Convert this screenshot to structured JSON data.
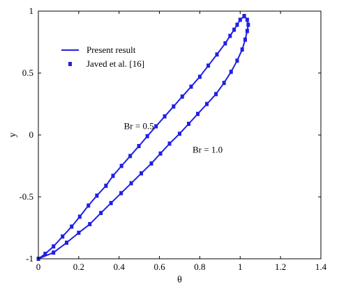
{
  "chart_data": {
    "type": "line",
    "xlabel": "θ",
    "ylabel": "y",
    "xlim": [
      0,
      1.4
    ],
    "ylim": [
      -1,
      1
    ],
    "xticks": [
      "0",
      "0.2",
      "0.4",
      "0.6",
      "0.8",
      "1",
      "1.2",
      "1.4"
    ],
    "yticks": [
      "-1",
      "-0.5",
      "0",
      "0.5",
      "1"
    ],
    "grid": false,
    "legend_position": "top-left",
    "legend": [
      {
        "label": "Present result",
        "style": "line"
      },
      {
        "label": "Javed et al. [16]",
        "style": "marker"
      }
    ],
    "color": "#1f1fe6",
    "annotations": [
      {
        "text": "Br = 0.5",
        "x": 0.5,
        "y": 0.07
      },
      {
        "text": "Br = 1.0",
        "x": 0.84,
        "y": -0.12
      }
    ],
    "series": [
      {
        "x": [
          0.0,
          0.034,
          0.075,
          0.12,
          0.165,
          0.205,
          0.248,
          0.29,
          0.335,
          0.37,
          0.412,
          0.455,
          0.498,
          0.54,
          0.583,
          0.626,
          0.67,
          0.713,
          0.757,
          0.8,
          0.842,
          0.885,
          0.926,
          0.95,
          0.97,
          0.985,
          1.0,
          1.02
        ],
        "y": [
          -1.0,
          -0.96,
          -0.9,
          -0.82,
          -0.74,
          -0.66,
          -0.57,
          -0.49,
          -0.41,
          -0.33,
          -0.25,
          -0.17,
          -0.09,
          -0.01,
          0.07,
          0.15,
          0.23,
          0.31,
          0.39,
          0.47,
          0.56,
          0.65,
          0.74,
          0.8,
          0.85,
          0.89,
          0.93,
          0.96
        ]
      },
      {
        "x": [
          0.0,
          0.075,
          0.14,
          0.2,
          0.255,
          0.31,
          0.36,
          0.41,
          0.46,
          0.51,
          0.56,
          0.605,
          0.65,
          0.7,
          0.745,
          0.79,
          0.835,
          0.88,
          0.92,
          0.955,
          0.985,
          1.01,
          1.025,
          1.035,
          1.04,
          1.035,
          1.02
        ],
        "y": [
          -1.0,
          -0.95,
          -0.87,
          -0.79,
          -0.72,
          -0.63,
          -0.55,
          -0.47,
          -0.39,
          -0.31,
          -0.23,
          -0.15,
          -0.07,
          0.01,
          0.09,
          0.17,
          0.25,
          0.33,
          0.42,
          0.51,
          0.6,
          0.69,
          0.77,
          0.84,
          0.89,
          0.93,
          0.96
        ]
      }
    ]
  }
}
